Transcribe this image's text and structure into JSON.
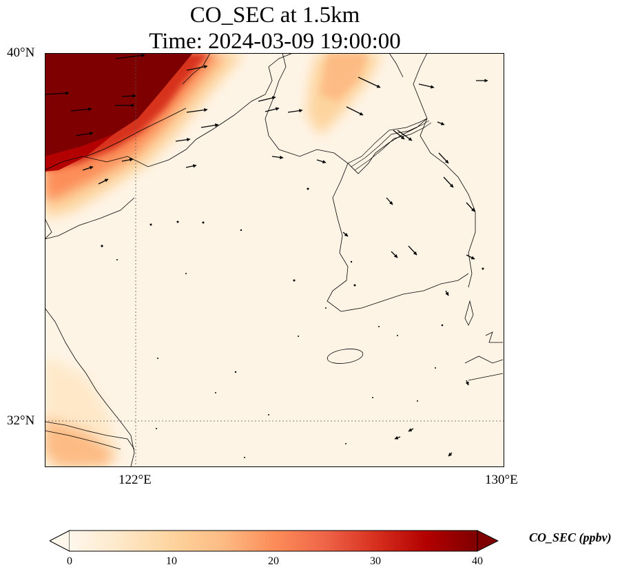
{
  "title": {
    "line1": "CO_SEC at 1.5km",
    "line2": "Time: 2024-03-09 19:00:00"
  },
  "axes": {
    "lat_labels": [
      "40°N",
      "32°N"
    ],
    "lon_labels": [
      "122°E",
      "130°E"
    ],
    "lat_range": [
      31.6,
      40.0
    ],
    "lon_range": [
      120.0,
      130.0
    ],
    "gridlines": "dotted at 122°E and 32°N"
  },
  "colorbar": {
    "label": "CO_SEC (ppbv)",
    "ticks": [
      "0",
      "10",
      "20",
      "30",
      "40"
    ],
    "range": [
      0,
      40
    ],
    "extend": "both",
    "colormap": [
      "#fff7ec",
      "#fee8c8",
      "#fdd49e",
      "#fdbb84",
      "#fc8d59",
      "#ef6548",
      "#d7301f",
      "#b30000",
      "#7f0000"
    ]
  },
  "colors": {
    "land_line": "#000000",
    "background": "#fef4e6"
  },
  "layers": [
    "CO_SEC concentration field",
    "wind vectors",
    "coastlines and borders"
  ]
}
